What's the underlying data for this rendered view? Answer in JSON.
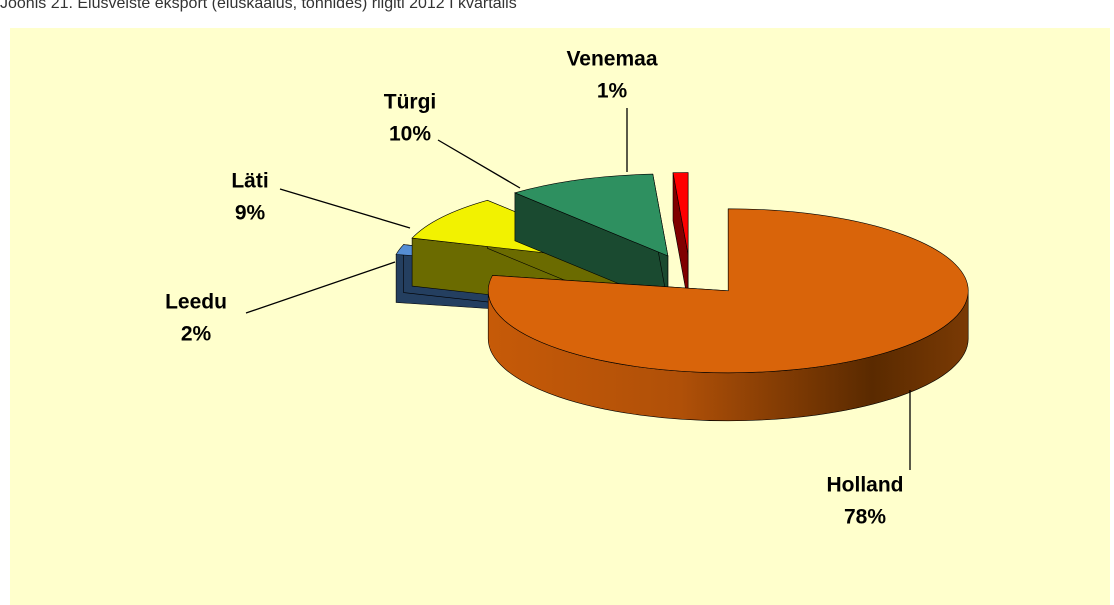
{
  "chart_data": {
    "type": "pie",
    "title": "Joonis 21. Elusveiste eksport (eluskaalus, tonnides) riigiti 2012 I kvartalis",
    "categories": [
      "Holland",
      "Leedu",
      "Läti",
      "Türgi",
      "Venemaa"
    ],
    "values": [
      78,
      2,
      9,
      10,
      1
    ],
    "value_labels": [
      "78%",
      "2%",
      "9%",
      "10%",
      "1%"
    ],
    "colors": [
      "#d9640a",
      "#558ed5",
      "#f2f200",
      "#2e9060",
      "#ff0000"
    ]
  }
}
